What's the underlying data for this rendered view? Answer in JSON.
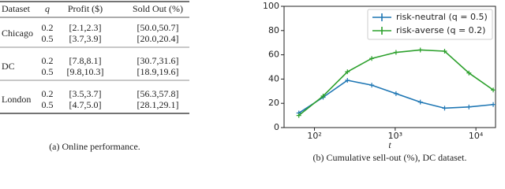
{
  "table": {
    "header": [
      "Dataset",
      "q",
      "Profit ($)",
      "Sold Out (%)"
    ],
    "groups": [
      {
        "name": "Chicago",
        "rows": [
          [
            "0.2",
            "[2.1,2.3]",
            "[50.0,50.7]"
          ],
          [
            "0.5",
            "[3.7,3.9]",
            "[20.0,20.4]"
          ]
        ]
      },
      {
        "name": "DC",
        "rows": [
          [
            "0.2",
            "[7.8,8.1]",
            "[30.7,31.6]"
          ],
          [
            "0.5",
            "[9.8,10.3]",
            "[18.9,19.6]"
          ]
        ]
      },
      {
        "name": "London",
        "rows": [
          [
            "0.2",
            "[3.5,3.7]",
            "[56.3,57.8]"
          ],
          [
            "0.5",
            "[4.7,5.0]",
            "[28.1,29.1]"
          ]
        ]
      }
    ],
    "caption": "(a) Online performance."
  },
  "chart_data": {
    "type": "line",
    "caption": "(b) Cumulative sell-out (%), DC dataset.",
    "xlabel": "t",
    "x": [
      64,
      128,
      256,
      512,
      1024,
      2048,
      4096,
      8192,
      16384
    ],
    "series": [
      {
        "name": "risk-neutral (q = 0.5)",
        "color": "#1f77b4",
        "values": [
          12,
          25,
          39,
          35,
          28,
          21,
          16,
          17,
          19
        ]
      },
      {
        "name": "risk-averse (q = 0.2)",
        "color": "#2ca02c",
        "values": [
          10,
          26,
          46,
          57,
          62,
          64,
          63,
          45,
          31
        ]
      }
    ],
    "xlog": true,
    "xlim": [
      42,
      17500
    ],
    "xticks": [
      {
        "value": 100,
        "label": "10²"
      },
      {
        "value": 1000,
        "label": "10³"
      },
      {
        "value": 10000,
        "label": "10⁴"
      }
    ],
    "ylim": [
      0,
      100
    ],
    "yticks": [
      0,
      20,
      40,
      60,
      80,
      100
    ],
    "legend": "upper right"
  }
}
